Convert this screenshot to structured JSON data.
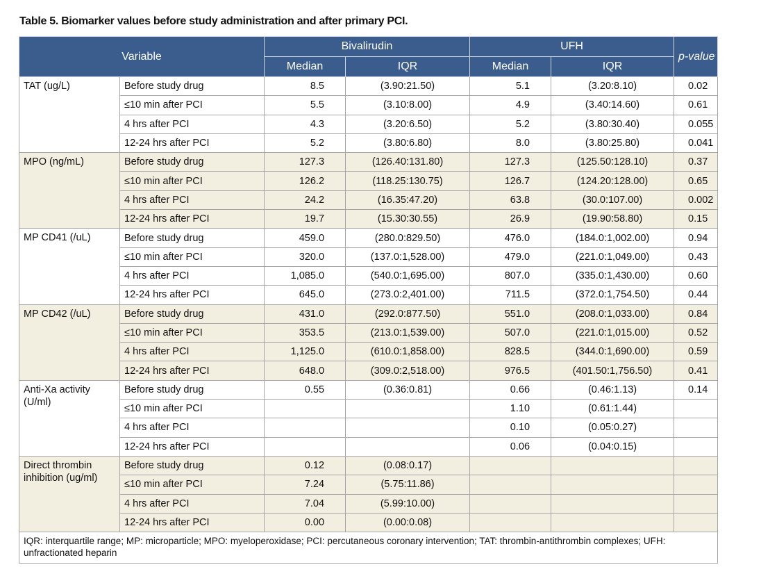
{
  "title": "Table 5. Biomarker values before study administration and after primary PCI.",
  "header": {
    "variable": "Variable",
    "p_value": "p-value",
    "arms": [
      {
        "name": "Bivalirudin",
        "median": "Median",
        "iqr": "IQR"
      },
      {
        "name": "UFH",
        "median": "Median",
        "iqr": "IQR"
      }
    ]
  },
  "groups": [
    {
      "variable": "TAT (ug/L)",
      "rows": [
        [
          "Before study drug",
          "8.5",
          "(3.90:21.50)",
          "5.1",
          "(3.20:8.10)",
          "0.02"
        ],
        [
          "≤10 min after PCI",
          "5.5",
          "(3.10:8.00)",
          "4.9",
          "(3.40:14.60)",
          "0.61"
        ],
        [
          "4 hrs after PCI",
          "4.3",
          "(3.20:6.50)",
          "5.2",
          "(3.80:30.40)",
          "0.055"
        ],
        [
          "12-24 hrs after PCI",
          "5.2",
          "(3.80:6.80)",
          "8.0",
          "(3.80:25.80)",
          "0.041"
        ]
      ]
    },
    {
      "variable": "MPO (ng/mL)",
      "rows": [
        [
          "Before study drug",
          "127.3",
          "(126.40:131.80)",
          "127.3",
          "(125.50:128.10)",
          "0.37"
        ],
        [
          "≤10 min after PCI",
          "126.2",
          "(118.25:130.75)",
          "126.7",
          "(124.20:128.00)",
          "0.65"
        ],
        [
          "4 hrs after PCI",
          "24.2",
          "(16.35:47.20)",
          "63.8",
          "(30.0:107.00)",
          "0.002"
        ],
        [
          "12-24 hrs after PCI",
          "19.7",
          "(15.30:30.55)",
          "26.9",
          "(19.90:58.80)",
          "0.15"
        ]
      ]
    },
    {
      "variable": "MP CD41 (/uL)",
      "rows": [
        [
          "Before study drug",
          "459.0",
          "(280.0:829.50)",
          "476.0",
          "(184.0:1,002.00)",
          "0.94"
        ],
        [
          "≤10 min after PCI",
          "320.0",
          "(137.0:1,528.00)",
          "479.0",
          "(221.0:1,049.00)",
          "0.43"
        ],
        [
          "4 hrs after PCI",
          "1,085.0",
          "(540.0:1,695.00)",
          "807.0",
          "(335.0:1,430.00)",
          "0.60"
        ],
        [
          "12-24 hrs after PCI",
          "645.0",
          "(273.0:2,401.00)",
          "711.5",
          "(372.0:1,754.50)",
          "0.44"
        ]
      ]
    },
    {
      "variable": "MP CD42 (/uL)",
      "rows": [
        [
          "Before study drug",
          "431.0",
          "(292.0:877.50)",
          "551.0",
          "(208.0:1,033.00)",
          "0.84"
        ],
        [
          "≤10 min after PCI",
          "353.5",
          "(213.0:1,539.00)",
          "507.0",
          "(221.0:1,015.00)",
          "0.52"
        ],
        [
          "4 hrs after PCI",
          "1,125.0",
          "(610.0:1,858.00)",
          "828.5",
          "(344.0:1,690.00)",
          "0.59"
        ],
        [
          "12-24 hrs after PCI",
          "648.0",
          "(309.0:2,518.00)",
          "976.5",
          "(401.50:1,756.50)",
          "0.41"
        ]
      ]
    },
    {
      "variable": "Anti-Xa activity (U/ml)",
      "rows": [
        [
          "Before study drug",
          "0.55",
          "(0.36:0.81)",
          "0.66",
          "(0.46:1.13)",
          "0.14"
        ],
        [
          "≤10 min after PCI",
          null,
          null,
          "1.10",
          "(0.61:1.44)",
          null
        ],
        [
          "4 hrs after PCI",
          null,
          null,
          "0.10",
          "(0.05:0.27)",
          null
        ],
        [
          "12-24 hrs after PCI",
          null,
          null,
          "0.06",
          "(0.04:0.15)",
          null
        ]
      ]
    },
    {
      "variable": "Direct thrombin inhibition (ug/ml)",
      "rows": [
        [
          "Before study drug",
          "0.12",
          "(0.08:0.17)",
          null,
          null,
          null
        ],
        [
          "≤10 min after PCI",
          "7.24",
          "(5.75:11.86)",
          null,
          null,
          null
        ],
        [
          "4 hrs after PCI",
          "7.04",
          "(5.99:10.00)",
          null,
          null,
          null
        ],
        [
          "12-24 hrs after PCI",
          "0.00",
          "(0.00:0.08)",
          null,
          null,
          null
        ]
      ]
    }
  ],
  "footnote": "IQR: interquartile range; MP: microparticle; MPO: myeloperoxidase; PCI: percutaneous coronary intervention; TAT: thrombin-antithrombin complexes; UFH: unfractionated heparin"
}
